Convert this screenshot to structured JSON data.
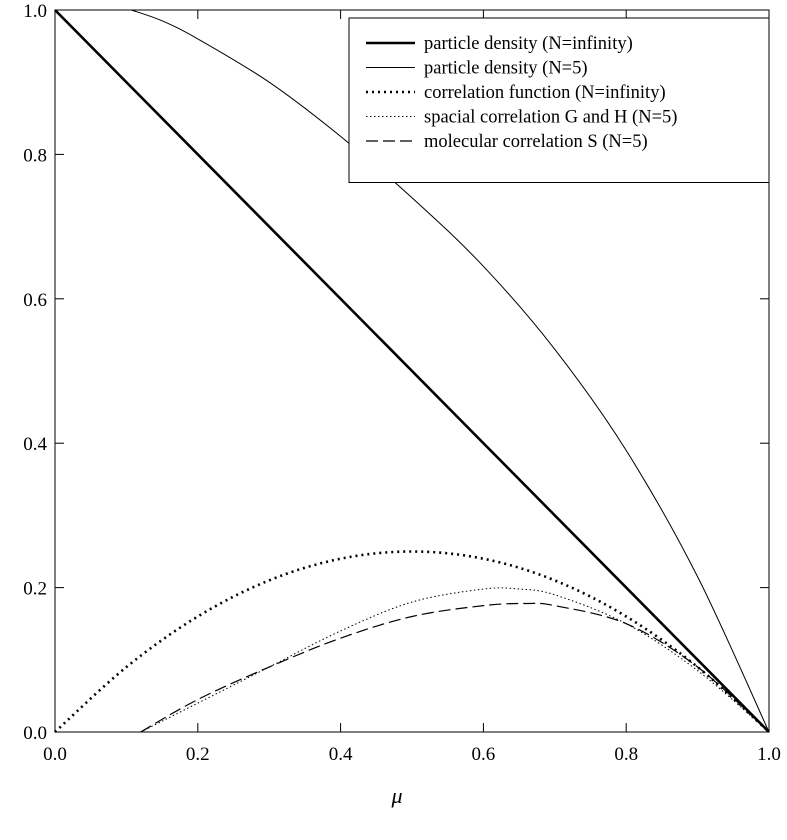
{
  "chart_data": {
    "type": "line",
    "title": "",
    "xlabel": "μ",
    "ylabel": "",
    "xlim": [
      0.0,
      1.0
    ],
    "ylim": [
      0.0,
      1.0
    ],
    "x_ticks": [
      "0.0",
      "0.2",
      "0.4",
      "0.6",
      "0.8",
      "1.0"
    ],
    "y_ticks": [
      "0.0",
      "0.2",
      "0.4",
      "0.6",
      "0.8",
      "1.0"
    ],
    "grid": false,
    "legend_position": "top-right",
    "series": [
      {
        "name": "particle density (N=infinity)",
        "style": "thick-solid",
        "x": [
          0.0,
          1.0
        ],
        "y": [
          1.0,
          0.0
        ]
      },
      {
        "name": "particle density (N=5)",
        "style": "thin-solid",
        "x": [
          0.107,
          0.15,
          0.2,
          0.3,
          0.4,
          0.5,
          0.6,
          0.7,
          0.8,
          0.9,
          1.0
        ],
        "y": [
          1.0,
          0.985,
          0.96,
          0.9,
          0.825,
          0.74,
          0.645,
          0.53,
          0.39,
          0.215,
          0.0
        ]
      },
      {
        "name": "correlation function (N=infinity)",
        "style": "thick-dotted",
        "x": [
          0.0,
          0.1,
          0.2,
          0.3,
          0.4,
          0.5,
          0.6,
          0.7,
          0.8,
          0.9,
          1.0
        ],
        "y": [
          0.0,
          0.09,
          0.16,
          0.21,
          0.24,
          0.25,
          0.24,
          0.21,
          0.16,
          0.09,
          0.0
        ]
      },
      {
        "name": "spacial correlation G and H (N=5)",
        "style": "thin-dotted",
        "x": [
          0.12,
          0.2,
          0.3,
          0.4,
          0.5,
          0.6,
          0.65,
          0.7,
          0.8,
          0.9,
          1.0
        ],
        "y": [
          0.0,
          0.04,
          0.09,
          0.14,
          0.18,
          0.198,
          0.198,
          0.19,
          0.15,
          0.085,
          0.0
        ]
      },
      {
        "name": "molecular correlation S (N=5)",
        "style": "dashed",
        "x": [
          0.12,
          0.2,
          0.3,
          0.4,
          0.5,
          0.6,
          0.66,
          0.7,
          0.8,
          0.9,
          1.0
        ],
        "y": [
          0.0,
          0.045,
          0.09,
          0.13,
          0.16,
          0.175,
          0.178,
          0.175,
          0.15,
          0.09,
          0.0
        ]
      }
    ]
  }
}
